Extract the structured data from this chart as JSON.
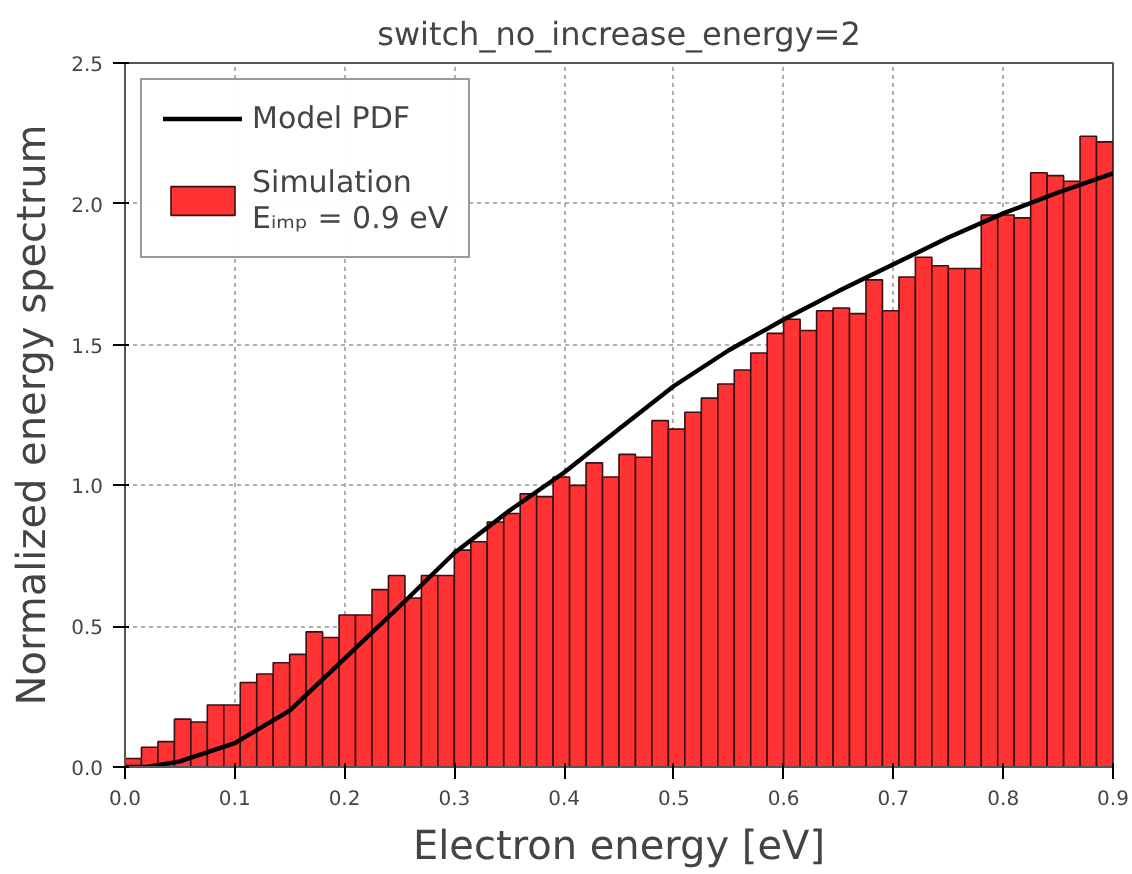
{
  "chart_data": {
    "type": "histogram",
    "title": "switch_no_increase_energy=2",
    "xlabel": "Electron energy [eV]",
    "ylabel": "Normalized energy spectrum",
    "xlim": [
      0,
      0.9
    ],
    "ylim": [
      0,
      2.5
    ],
    "xticks": [
      {
        "value": 0,
        "label": "0.0"
      },
      0.1,
      0.2,
      0.3,
      0.4,
      0.5,
      0.6,
      0.7,
      0.8,
      0.9
    ],
    "yticks": [
      {
        "value": 0,
        "label": "0.0"
      },
      0.5,
      {
        "value": 1,
        "label": "1.0"
      },
      1.5,
      {
        "value": 2,
        "label": "2.0"
      },
      2.5
    ],
    "grid": true,
    "legend": "top left",
    "series": [
      {
        "type": "line",
        "name": "Model PDF",
        "color": "#000000",
        "x": [
          0,
          0.02,
          0.05,
          0.1,
          0.15,
          0.2,
          0.25,
          0.3,
          0.35,
          0.4,
          0.45,
          0.5,
          0.55,
          0.6,
          0.65,
          0.7,
          0.75,
          0.8,
          0.85,
          0.9
        ],
        "values": [
          0,
          0,
          0.02,
          0.085,
          0.2,
          0.385,
          0.57,
          0.76,
          0.91,
          1.046,
          1.2,
          1.353,
          1.48,
          1.589,
          1.69,
          1.785,
          1.88,
          1.966,
          2.04,
          2.108
        ]
      },
      {
        "name": "Simulation\nEᵢₘₚ = 0.9 eV",
        "color": "#ff3333",
        "bins": [
          0,
          0.015,
          0.03,
          0.045,
          0.06,
          0.075,
          0.09,
          0.105,
          0.12,
          0.135,
          0.15,
          0.165,
          0.18,
          0.195,
          0.21,
          0.225,
          0.24,
          0.255,
          0.27,
          0.285,
          0.3,
          0.315,
          0.33,
          0.345,
          0.36,
          0.375,
          0.39,
          0.405,
          0.42,
          0.435,
          0.45,
          0.465,
          0.48,
          0.495,
          0.51,
          0.525,
          0.54,
          0.555,
          0.57,
          0.585,
          0.6,
          0.615,
          0.63,
          0.645,
          0.66,
          0.675,
          0.69,
          0.705,
          0.72,
          0.735,
          0.75,
          0.765,
          0.78,
          0.795,
          0.81,
          0.825,
          0.84,
          0.855,
          0.87,
          0.885,
          0.9
        ],
        "values": [
          0.03,
          0.07,
          0.09,
          0.17,
          0.16,
          0.22,
          0.22,
          0.3,
          0.33,
          0.37,
          0.4,
          0.48,
          0.46,
          0.54,
          0.54,
          0.63,
          0.68,
          0.6,
          0.68,
          0.68,
          0.77,
          0.8,
          0.87,
          0.9,
          0.97,
          0.96,
          1.03,
          1.0,
          1.08,
          1.03,
          1.11,
          1.1,
          1.23,
          1.2,
          1.26,
          1.31,
          1.36,
          1.41,
          1.47,
          1.54,
          1.59,
          1.55,
          1.62,
          1.63,
          1.61,
          1.73,
          1.62,
          1.74,
          1.81,
          1.78,
          1.77,
          1.77,
          1.96,
          1.96,
          1.95,
          2.11,
          2.1,
          2.08,
          2.24,
          2.22
        ]
      }
    ]
  }
}
